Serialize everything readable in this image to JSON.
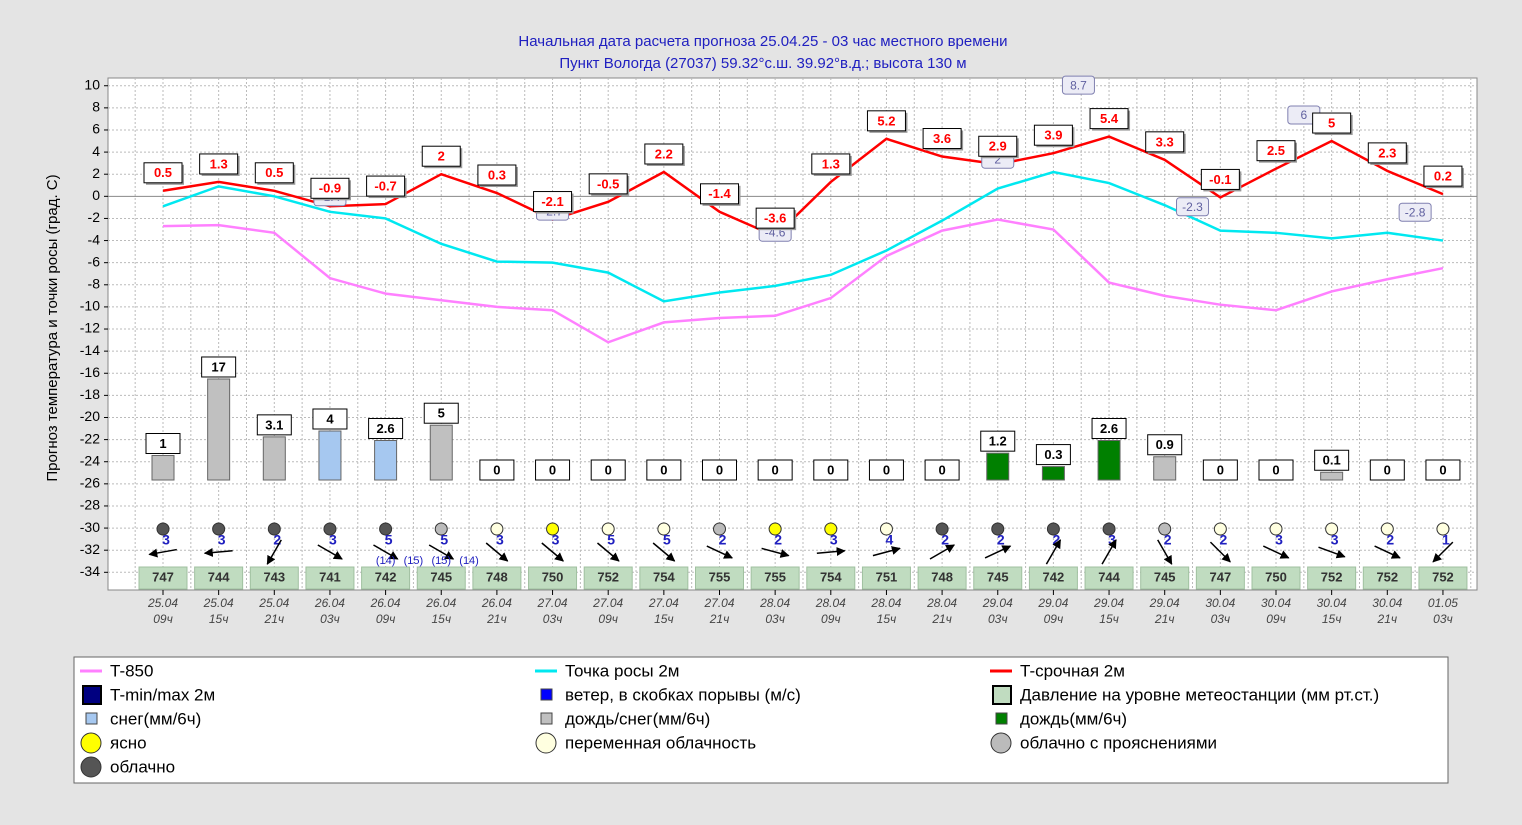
{
  "chart_data": {
    "type": "line",
    "title": "Начальная дата расчета прогноза 25.04.25 - 03 час местного времени",
    "subtitle": "Пункт  Вологда (27037)   59.32°с.ш.  39.92°в.д.; высота 130 м",
    "y_label": "Прогноз температура и точки росы (град. С)",
    "categories": [
      [
        "25.04",
        "09ч"
      ],
      [
        "25.04",
        "15ч"
      ],
      [
        "25.04",
        "21ч"
      ],
      [
        "26.04",
        "03ч"
      ],
      [
        "26.04",
        "09ч"
      ],
      [
        "26.04",
        "15ч"
      ],
      [
        "26.04",
        "21ч"
      ],
      [
        "27.04",
        "03ч"
      ],
      [
        "27.04",
        "09ч"
      ],
      [
        "27.04",
        "15ч"
      ],
      [
        "27.04",
        "21ч"
      ],
      [
        "28.04",
        "03ч"
      ],
      [
        "28.04",
        "09ч"
      ],
      [
        "28.04",
        "15ч"
      ],
      [
        "28.04",
        "21ч"
      ],
      [
        "29.04",
        "03ч"
      ],
      [
        "29.04",
        "09ч"
      ],
      [
        "29.04",
        "15ч"
      ],
      [
        "29.04",
        "21ч"
      ],
      [
        "30.04",
        "03ч"
      ],
      [
        "30.04",
        "09ч"
      ],
      [
        "30.04",
        "15ч"
      ],
      [
        "30.04",
        "21ч"
      ],
      [
        "01.05",
        "03ч"
      ]
    ],
    "ylim": [
      -35.6,
      10.7
    ],
    "yticks": [
      -34,
      -32,
      -30,
      -28,
      -26,
      -24,
      -22,
      -20,
      -18,
      -16,
      -14,
      -12,
      -10,
      -8,
      -6,
      -4,
      -2,
      0,
      2,
      4,
      6,
      8,
      10
    ],
    "grid": true,
    "series": [
      {
        "name": "T-850",
        "color": "#ff80ff",
        "values": [
          -2.7,
          -2.6,
          -3.3,
          -7.4,
          -8.8,
          -9.4,
          -10,
          -10.3,
          -13.2,
          -11.4,
          -11,
          -10.8,
          -9.2,
          -5.4,
          -3.1,
          -2.1,
          -3,
          -7.8,
          -9,
          -9.8,
          -10.3,
          -8.6,
          -7.5,
          -6.5
        ]
      },
      {
        "name": "Точка росы 2м",
        "color": "#00e8f0",
        "values": [
          -0.9,
          0.9,
          0,
          -1.4,
          -2,
          -4.3,
          -5.9,
          -6,
          -6.9,
          -9.5,
          -8.7,
          -8.1,
          -7.1,
          -4.9,
          -2.2,
          0.7,
          2.2,
          1.2,
          -0.8,
          -3.1,
          -3.3,
          -3.8,
          -3.3,
          -4
        ]
      },
      {
        "name": "T-срочная 2м",
        "color": "#ff0000",
        "values": [
          0.5,
          1.3,
          0.5,
          -0.9,
          -0.7,
          2,
          0.3,
          -2.1,
          -0.5,
          2.2,
          -1.4,
          -3.6,
          1.3,
          5.2,
          3.6,
          2.9,
          3.9,
          5.4,
          3.3,
          -0.1,
          2.5,
          5,
          2.3,
          0.2
        ]
      }
    ],
    "tminmax": {
      "positions": [
        3,
        7,
        11,
        15,
        16.45,
        18.5,
        20.5,
        22.5
      ],
      "values": [
        -1.4,
        -2.7,
        -4.6,
        2,
        8.7,
        -2.3,
        6,
        -2.8
      ]
    },
    "precip": {
      "values": [
        1,
        17,
        3.1,
        4,
        2.6,
        5,
        0,
        0,
        0,
        0,
        0,
        0,
        0,
        0,
        0,
        1.2,
        0.3,
        2.6,
        0.9,
        0,
        0,
        0.1,
        0,
        0
      ],
      "colors": [
        "#c0c0c0",
        "#c0c0c0",
        "#c0c0c0",
        "#a6c8f0",
        "#a6c8f0",
        "#c0c0c0",
        "#c0c0c0",
        "#c0c0c0",
        "#c0c0c0",
        "#c0c0c0",
        "#c0c0c0",
        "#c0c0c0",
        "#c0c0c0",
        "#c0c0c0",
        "#c0c0c0",
        "#008000",
        "#008000",
        "#008000",
        "#c0c0c0",
        "#c0c0c0",
        "#c0c0c0",
        "#c0c0c0",
        "#c0c0c0",
        "#c0c0c0"
      ]
    },
    "cloud_colors": [
      "#555555",
      "#555555",
      "#555555",
      "#555555",
      "#555555",
      "#bbbbbb",
      "#ffffe0",
      "#ffff00",
      "#ffffe0",
      "#ffffe0",
      "#bbbbbb",
      "#ffff00",
      "#ffff00",
      "#ffffe0",
      "#555555",
      "#555555",
      "#555555",
      "#555555",
      "#bbbbbb",
      "#ffffe0",
      "#ffffe0",
      "#ffffe0",
      "#ffffe0",
      "#ffffe0"
    ],
    "wind_speed": [
      3,
      3,
      2,
      3,
      5,
      5,
      3,
      3,
      5,
      5,
      2,
      2,
      3,
      4,
      2,
      2,
      2,
      3,
      2,
      2,
      3,
      3,
      2,
      1
    ],
    "wind_angles": [
      170,
      175,
      120,
      30,
      30,
      30,
      40,
      40,
      40,
      40,
      25,
      15,
      -5,
      -15,
      -30,
      -25,
      -60,
      -60,
      60,
      45,
      25,
      20,
      25,
      135
    ],
    "gusts": {
      "positions": [
        4,
        4.5,
        5,
        5.5
      ],
      "values": [
        14,
        15,
        15,
        14
      ],
      "value_labels": [
        "(14)",
        "(15)",
        "(15)",
        "(14)"
      ]
    },
    "pressure": [
      747,
      744,
      743,
      741,
      742,
      745,
      748,
      750,
      752,
      754,
      755,
      755,
      754,
      751,
      748,
      745,
      742,
      744,
      745,
      747,
      750,
      752,
      752,
      752
    ],
    "legend_extra": [
      {
        "label": "T-min/max 2м",
        "color": "#000080",
        "shape": "square"
      },
      {
        "label": "ветер, в скобках порывы (м/с)",
        "color": "#0000ff",
        "shape": "small"
      },
      {
        "label": "Давление на уровне метеостанции (мм рт.ст.)",
        "color": "#c0dcc0",
        "shape": "square"
      },
      {
        "label": "снег(мм/6ч)",
        "color": "#a6c8f0",
        "shape": "small"
      },
      {
        "label": "дождь/снег(мм/6ч)",
        "color": "#c0c0c0",
        "shape": "small"
      },
      {
        "label": "дождь(мм/6ч)",
        "color": "#008000",
        "shape": "small"
      },
      {
        "label": "ясно",
        "color": "#ffff00",
        "shape": "circle"
      },
      {
        "label": "переменная облачность",
        "color": "#ffffe0",
        "shape": "circle"
      },
      {
        "label": "облачно с прояснениями",
        "color": "#bbbbbb",
        "shape": "circle"
      },
      {
        "label": "облачно",
        "color": "#555555",
        "shape": "circle"
      }
    ]
  }
}
